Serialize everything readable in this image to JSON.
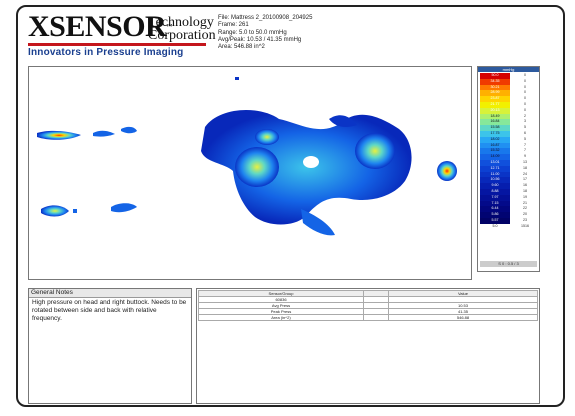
{
  "logo": {
    "name": "XSENSOR",
    "tm": "™",
    "tech_line1": "Technology",
    "tech_line2": "Corporation",
    "tagline": "Innovators in Pressure Imaging",
    "name_color": "#111111",
    "tagline_color": "#1a3f8f",
    "bar_color": "#c4161c"
  },
  "meta": {
    "file": "File: Mattress 2_20100908_204925",
    "frame": "Frame: 261",
    "range": "Range: 5.0 to 50.0 mmHg",
    "avg_peak": "Avg/Peak: 10.53 / 41.35 mmHg",
    "area": "Area: 546.88 in^2"
  },
  "scale": {
    "header": "mmHg",
    "levels": [
      "50.0",
      "34.35",
      "30.21",
      "28.99",
      "23.87",
      "21.77",
      "20.13",
      "18.49",
      "16.84",
      "15.58",
      "17.75",
      "18.02",
      "16.87",
      "15.32",
      "14.09",
      "13.01",
      "12.71",
      "11.00",
      "10.56",
      "9.60",
      "8.88",
      "7.97",
      "7.15",
      "6.44",
      "5.86",
      "5.57",
      "5.0"
    ],
    "counts": [
      "0",
      "0",
      "0",
      "0",
      "0",
      "0",
      "0",
      "2",
      "3",
      "5",
      "6",
      "5",
      "7",
      "7",
      "9",
      "13",
      "18",
      "24",
      "17",
      "16",
      "18",
      "19",
      "21",
      "22",
      "20",
      "23",
      "1516"
    ],
    "footer": "S 0 : 0.5 / 3",
    "colors": [
      "#d60000",
      "#f03a00",
      "#ff7a00",
      "#ffb000",
      "#ffd400",
      "#f2f000",
      "#d8f23a",
      "#aef06e",
      "#86e89a",
      "#5ed8c6",
      "#3cc4ea",
      "#28a8f4",
      "#2090f2",
      "#1878ec",
      "#1464e6",
      "#1050dc",
      "#0c40d2",
      "#0a34c6",
      "#0828ba",
      "#061eae",
      "#0516a2",
      "#041096",
      "#030a8a",
      "#02067e",
      "#010472",
      "#010266",
      "#ffffff"
    ]
  },
  "notes": {
    "title": "General Notes",
    "text": "High pressure on head and right buttock. Needs to be rotated between side and back with relative frequency."
  },
  "stats": {
    "headers": [
      "Sensor/Group",
      "",
      "Value"
    ],
    "group": "60836",
    "rows": [
      {
        "label": "Avg Press",
        "value": "10.53"
      },
      {
        "label": "Peak Press",
        "value": "41.35"
      },
      {
        "label": "Area (in^2)",
        "value": "546.88"
      }
    ]
  }
}
